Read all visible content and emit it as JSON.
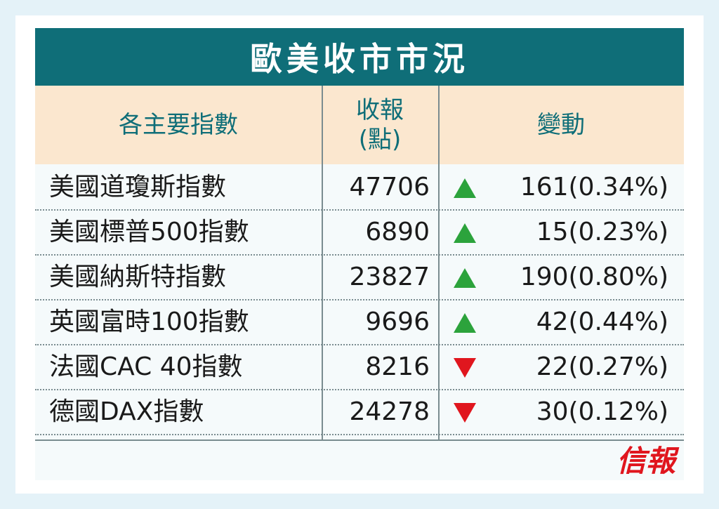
{
  "title": "歐美收市市況",
  "headers": {
    "index": "各主要指數",
    "close": "收報\n(點)",
    "change": "變動"
  },
  "rows": [
    {
      "name": "美國道瓊斯指數",
      "close": "47706",
      "direction": "up",
      "change": "161(0.34%)"
    },
    {
      "name": "美國標普500指數",
      "close": "6890",
      "direction": "up",
      "change": "15(0.23%)"
    },
    {
      "name": "美國納斯特指數",
      "close": "23827",
      "direction": "up",
      "change": "190(0.80%)"
    },
    {
      "name": "英國富時100指數",
      "close": "9696",
      "direction": "up",
      "change": "42(0.44%)"
    },
    {
      "name": "法國CAC 40指數",
      "close": "8216",
      "direction": "down",
      "change": "22(0.27%)"
    },
    {
      "name": "德國DAX指數",
      "close": "24278",
      "direction": "down",
      "change": "30(0.12%)"
    }
  ],
  "colors": {
    "header_bg": "#0f6e78",
    "subheader_bg": "#fbe7cf",
    "up": "#2ca33c",
    "down": "#e0161e"
  },
  "logo": "信報",
  "chart_data": {
    "type": "table",
    "title": "歐美收市市況",
    "columns": [
      "各主要指數",
      "收報(點)",
      "變動"
    ],
    "rows": [
      [
        "美國道瓊斯指數",
        47706,
        "▲161(0.34%)"
      ],
      [
        "美國標普500指數",
        6890,
        "▲15(0.23%)"
      ],
      [
        "美國納斯特指數",
        23827,
        "▲190(0.80%)"
      ],
      [
        "英國富時100指數",
        9696,
        "▲42(0.44%)"
      ],
      [
        "法國CAC 40指數",
        8216,
        "▼22(0.27%)"
      ],
      [
        "德國DAX指數",
        24278,
        "▼30(0.12%)"
      ]
    ]
  }
}
